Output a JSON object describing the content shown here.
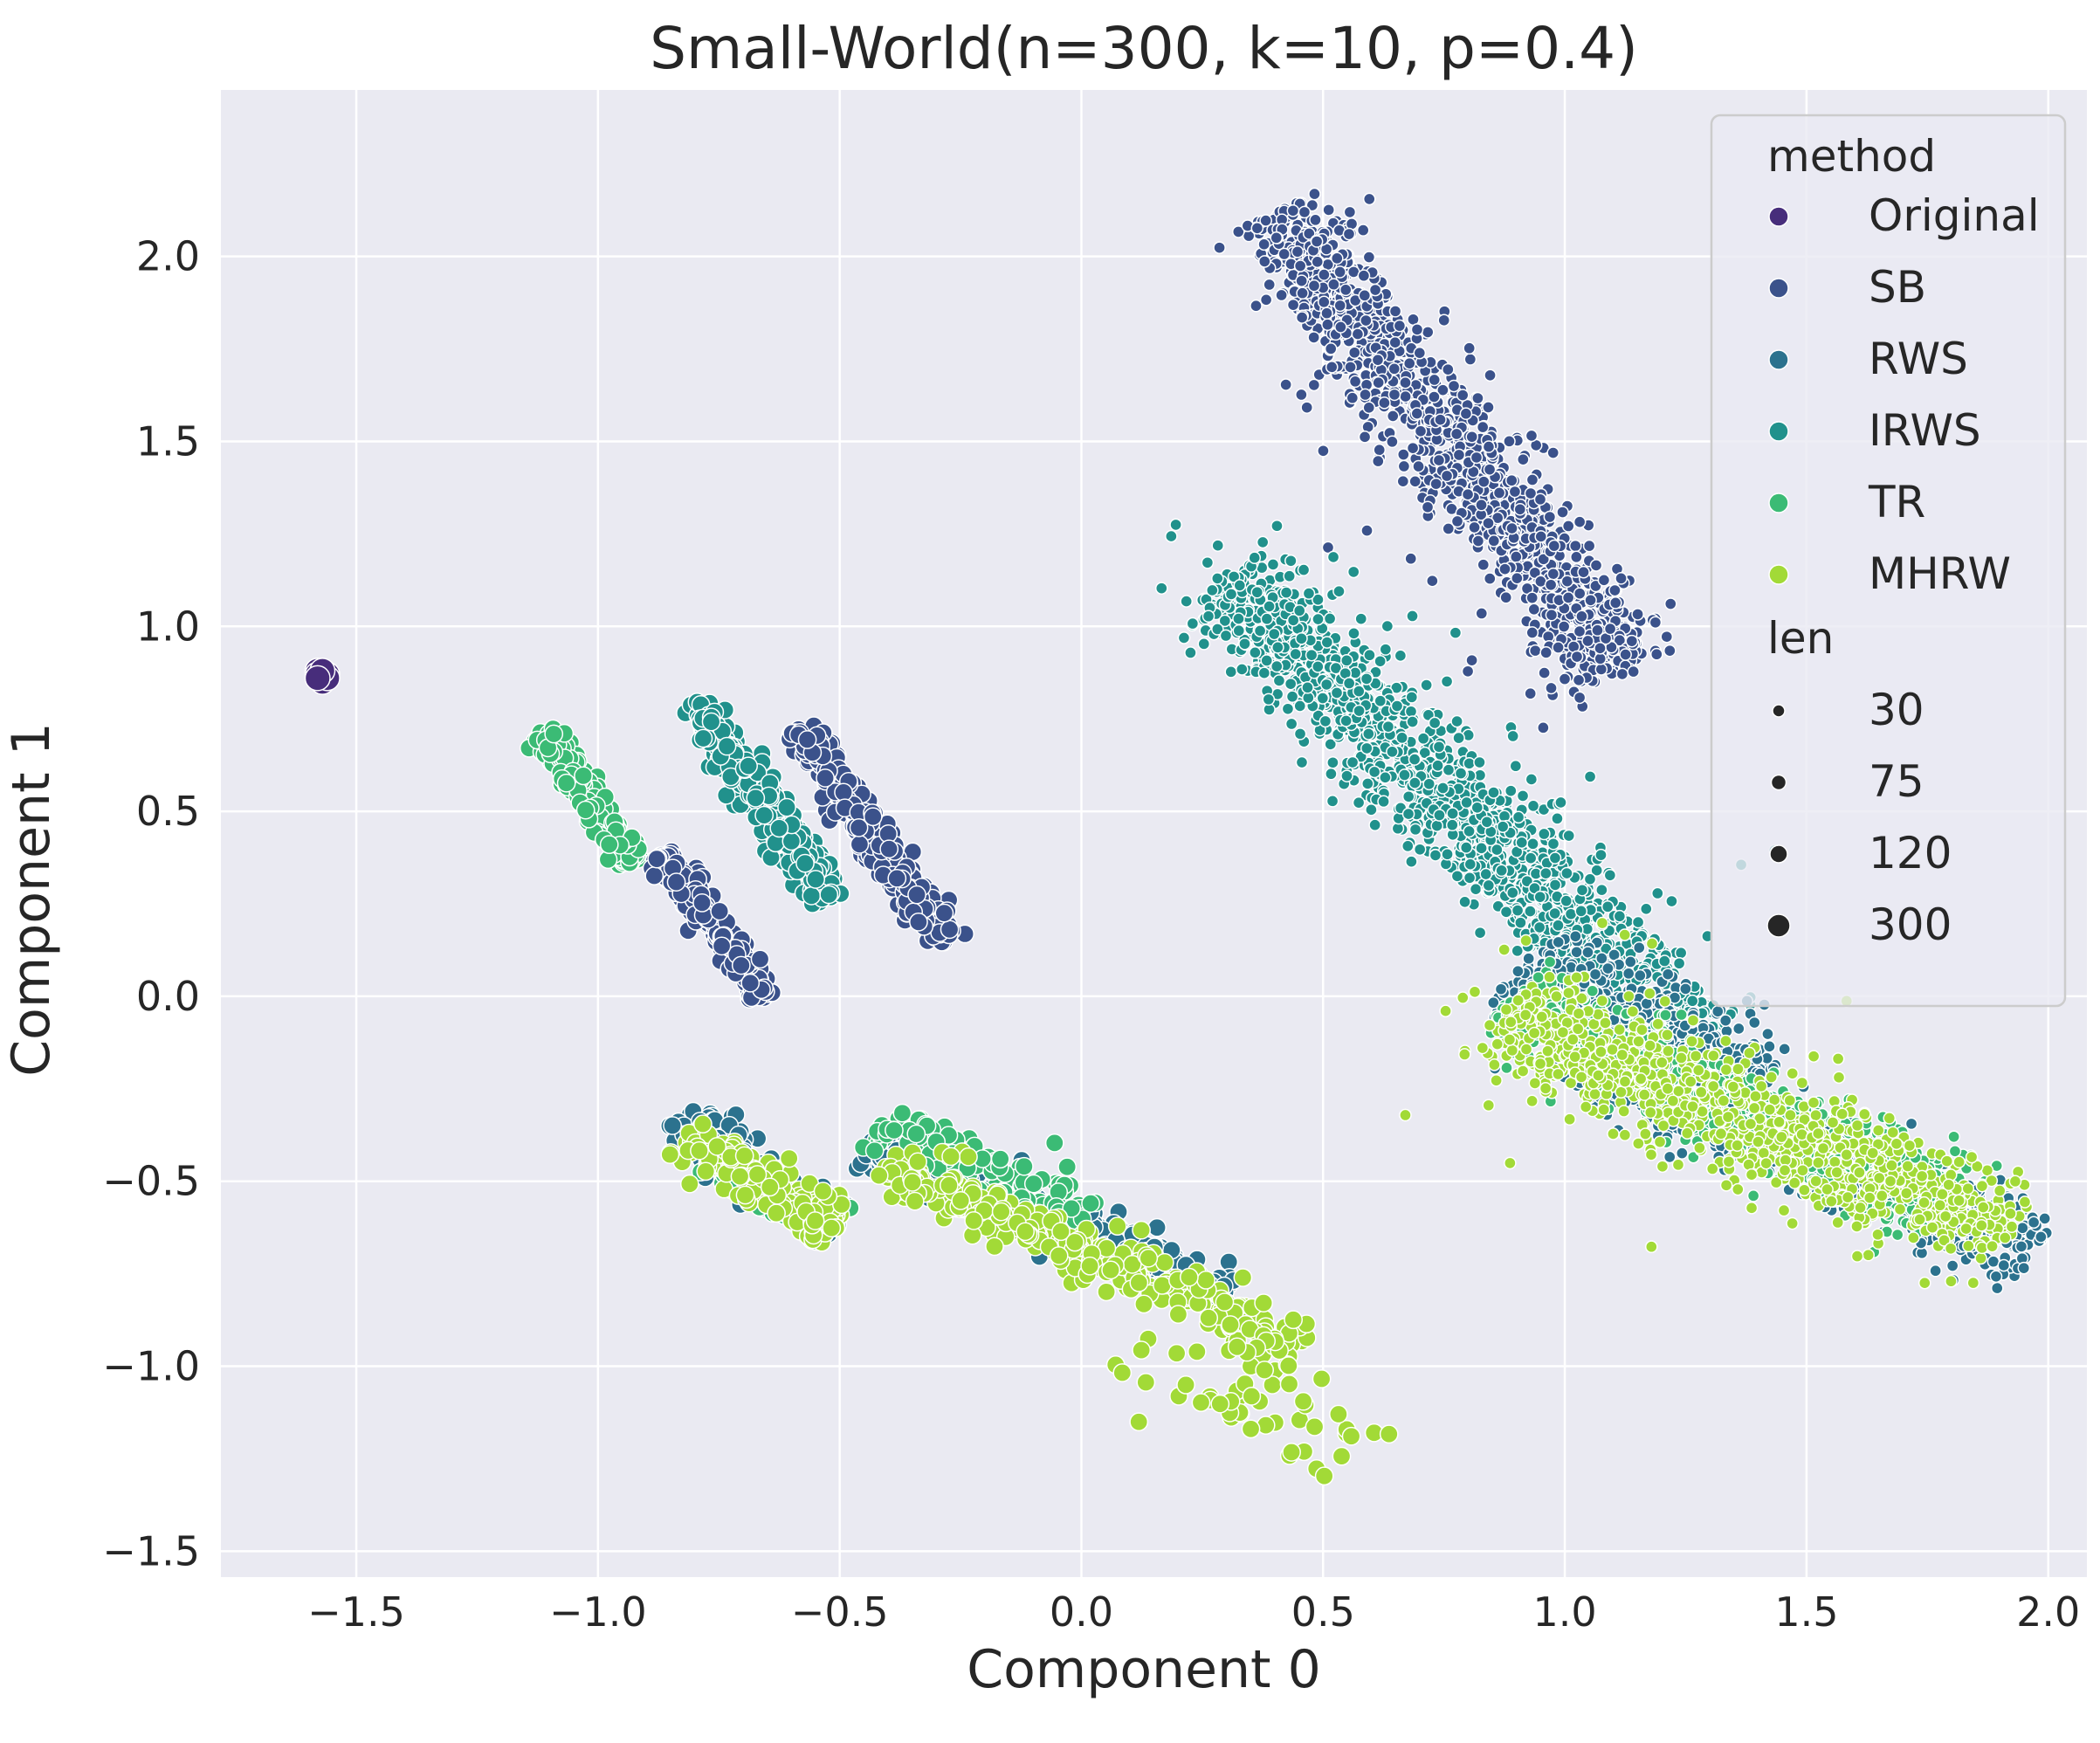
{
  "chart_data": {
    "type": "scatter",
    "title": "Small-World(n=300, k=10, p=0.4)",
    "xlabel": "Component 0",
    "ylabel": "Component 1",
    "xlim": [
      -1.78,
      2.08
    ],
    "ylim": [
      -1.57,
      2.45
    ],
    "xticks": [
      -1.5,
      -1.0,
      -0.5,
      0.0,
      0.5,
      1.0,
      1.5,
      2.0
    ],
    "xtick_labels": [
      "−1.5",
      "−1.0",
      "−0.5",
      "0.0",
      "0.5",
      "1.0",
      "1.5",
      "2.0"
    ],
    "yticks": [
      -1.5,
      -1.0,
      -0.5,
      0.0,
      0.5,
      1.0,
      1.5,
      2.0
    ],
    "ytick_labels": [
      "−1.5",
      "−1.0",
      "−0.5",
      "0.0",
      "0.5",
      "1.0",
      "1.5",
      "2.0"
    ],
    "grid": true,
    "background": "#eaeaf2",
    "legend": {
      "placement": "top-right",
      "hue_title": "method",
      "size_title": "len",
      "methods": [
        {
          "name": "Original",
          "color": "#472d7b"
        },
        {
          "name": "SB",
          "color": "#3b528b"
        },
        {
          "name": "RWS",
          "color": "#2c728e"
        },
        {
          "name": "IRWS",
          "color": "#21918c"
        },
        {
          "name": "TR",
          "color": "#3bbb75"
        },
        {
          "name": "MHRW",
          "color": "#a2da37"
        }
      ],
      "sizes": [
        {
          "label": "30",
          "value": 30
        },
        {
          "label": "75",
          "value": 75
        },
        {
          "label": "120",
          "value": 120
        },
        {
          "label": "300",
          "value": 300
        }
      ]
    },
    "clusters": [
      {
        "method": "Original",
        "len": 300,
        "points": [
          [
            -1.58,
            0.88
          ],
          [
            -1.57,
            0.86
          ],
          [
            -1.56,
            0.87
          ],
          [
            -1.57,
            0.85
          ],
          [
            -1.58,
            0.87
          ],
          [
            -1.56,
            0.86
          ],
          [
            -1.57,
            0.88
          ],
          [
            -1.58,
            0.86
          ]
        ]
      },
      {
        "method": "SB",
        "len": 30,
        "n": 1300,
        "center": [
          0.76,
          1.5
        ],
        "half_length": 0.72,
        "half_width": 0.09,
        "angle_deg": -60
      },
      {
        "method": "SB",
        "len": 30,
        "n": 90,
        "center": [
          0.85,
          1.3
        ],
        "half_length": 0.55,
        "half_width": 0.18,
        "angle_deg": -60
      },
      {
        "method": "IRWS",
        "len": 30,
        "n": 1500,
        "center": [
          0.78,
          0.5
        ],
        "half_length": 0.8,
        "half_width": 0.1,
        "angle_deg": -52
      },
      {
        "method": "IRWS",
        "len": 30,
        "n": 100,
        "center": [
          0.7,
          0.7
        ],
        "half_length": 0.8,
        "half_width": 0.2,
        "angle_deg": -52
      },
      {
        "method": "RWS",
        "len": 30,
        "n": 900,
        "center": [
          1.5,
          -0.42
        ],
        "half_length": 0.55,
        "half_width": 0.08,
        "angle_deg": -30
      },
      {
        "method": "RWS",
        "len": 30,
        "n": 600,
        "center": [
          1.15,
          -0.1
        ],
        "half_length": 0.3,
        "half_width": 0.12,
        "angle_deg": -35
      },
      {
        "method": "TR",
        "len": 30,
        "n": 700,
        "center": [
          1.35,
          -0.3
        ],
        "half_length": 0.55,
        "half_width": 0.1,
        "angle_deg": -30
      },
      {
        "method": "MHRW",
        "len": 30,
        "n": 900,
        "center": [
          1.4,
          -0.35
        ],
        "half_length": 0.6,
        "half_width": 0.11,
        "angle_deg": -30
      },
      {
        "method": "MHRW",
        "len": 30,
        "n": 60,
        "center": [
          1.2,
          -0.2
        ],
        "half_length": 0.5,
        "half_width": 0.25,
        "angle_deg": -30
      },
      {
        "method": "TR",
        "len": 120,
        "n": 280,
        "center": [
          -1.02,
          0.54
        ],
        "half_length": 0.2,
        "half_width": 0.025,
        "angle_deg": -62
      },
      {
        "method": "IRWS",
        "len": 120,
        "n": 350,
        "center": [
          -0.66,
          0.53
        ],
        "half_length": 0.3,
        "half_width": 0.035,
        "angle_deg": -62
      },
      {
        "method": "SB",
        "len": 120,
        "n": 220,
        "center": [
          -0.76,
          0.19
        ],
        "half_length": 0.22,
        "half_width": 0.025,
        "angle_deg": -62
      },
      {
        "method": "SB",
        "len": 120,
        "n": 300,
        "center": [
          -0.43,
          0.43
        ],
        "half_length": 0.33,
        "half_width": 0.035,
        "angle_deg": -63
      },
      {
        "method": "RWS",
        "len": 120,
        "n": 200,
        "center": [
          -0.67,
          -0.48
        ],
        "half_length": 0.22,
        "half_width": 0.05,
        "angle_deg": -45
      },
      {
        "method": "TR",
        "len": 120,
        "n": 120,
        "center": [
          -0.64,
          -0.54
        ],
        "half_length": 0.16,
        "half_width": 0.04,
        "angle_deg": -35
      },
      {
        "method": "MHRW",
        "len": 120,
        "n": 170,
        "center": [
          -0.66,
          -0.5
        ],
        "half_length": 0.2,
        "half_width": 0.05,
        "angle_deg": -38
      },
      {
        "method": "RWS",
        "len": 120,
        "n": 360,
        "center": [
          -0.07,
          -0.6
        ],
        "half_length": 0.42,
        "half_width": 0.05,
        "angle_deg": -28
      },
      {
        "method": "TR",
        "len": 120,
        "n": 130,
        "center": [
          -0.2,
          -0.47
        ],
        "half_length": 0.25,
        "half_width": 0.06,
        "angle_deg": -30
      },
      {
        "method": "MHRW",
        "len": 120,
        "n": 320,
        "center": [
          0.02,
          -0.7
        ],
        "half_length": 0.5,
        "half_width": 0.055,
        "angle_deg": -30
      },
      {
        "method": "MHRW",
        "len": 120,
        "n": 50,
        "center": [
          0.35,
          -1.1
        ],
        "half_length": 0.3,
        "half_width": 0.1,
        "angle_deg": -30
      }
    ]
  }
}
